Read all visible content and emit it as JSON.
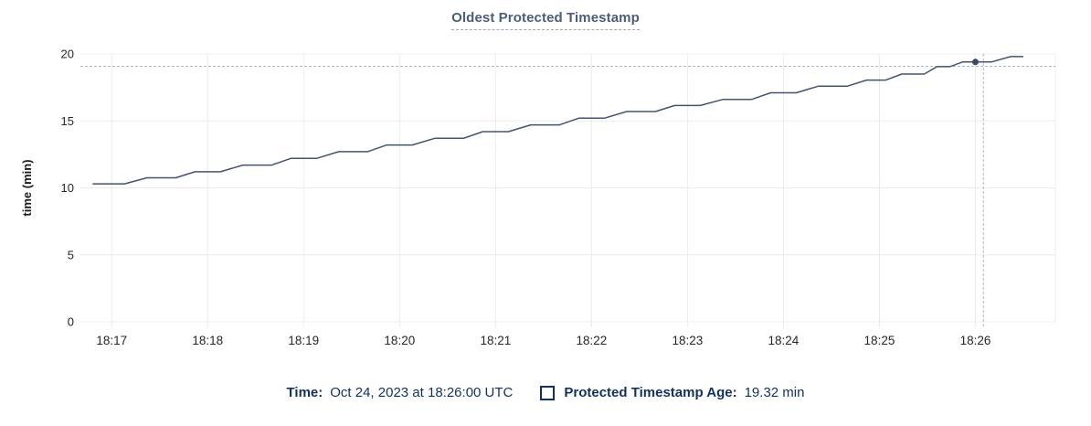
{
  "title": "Oldest Protected Timestamp",
  "tooltip": {
    "time_label": "Time:",
    "time_value": "Oct 24, 2023 at 18:26:00 UTC",
    "series_label": "Protected Timestamp Age:",
    "series_value": "19.32 min"
  },
  "colors": {
    "line": "#44536e",
    "marker": "#3a4a67",
    "grid": "#ececec",
    "crosshair": "#a3b7c6",
    "title": "#4c5d78",
    "axis_text": "#242628",
    "axis_title": "#1a1d21",
    "legend_text": "#13325b"
  },
  "chart_data": {
    "type": "line",
    "title": "Oldest Protected Timestamp",
    "xlabel": "",
    "ylabel": "time (min)",
    "ylim": [
      0,
      20
    ],
    "y_ticks": [
      0,
      5,
      10,
      15,
      20
    ],
    "x_ticks": [
      "18:17",
      "18:18",
      "18:19",
      "18:20",
      "18:21",
      "18:22",
      "18:23",
      "18:24",
      "18:25",
      "18:26"
    ],
    "x_domain": [
      "18:16:45",
      "18:26:50"
    ],
    "grid": true,
    "legend_position": "bottom",
    "series": [
      {
        "name": "Protected Timestamp Age",
        "unit": "min",
        "points": [
          [
            "18:16:48",
            10.3
          ],
          [
            "18:17:08",
            10.3
          ],
          [
            "18:17:22",
            10.75
          ],
          [
            "18:17:40",
            10.75
          ],
          [
            "18:17:52",
            11.2
          ],
          [
            "18:18:08",
            11.2
          ],
          [
            "18:18:22",
            11.7
          ],
          [
            "18:18:40",
            11.7
          ],
          [
            "18:18:52",
            12.2
          ],
          [
            "18:19:08",
            12.2
          ],
          [
            "18:19:22",
            12.7
          ],
          [
            "18:19:40",
            12.7
          ],
          [
            "18:19:52",
            13.2
          ],
          [
            "18:20:08",
            13.2
          ],
          [
            "18:20:22",
            13.7
          ],
          [
            "18:20:40",
            13.7
          ],
          [
            "18:20:52",
            14.2
          ],
          [
            "18:21:08",
            14.2
          ],
          [
            "18:21:22",
            14.7
          ],
          [
            "18:21:40",
            14.7
          ],
          [
            "18:21:52",
            15.2
          ],
          [
            "18:22:08",
            15.2
          ],
          [
            "18:22:22",
            15.7
          ],
          [
            "18:22:40",
            15.7
          ],
          [
            "18:22:52",
            16.15
          ],
          [
            "18:23:08",
            16.15
          ],
          [
            "18:23:22",
            16.6
          ],
          [
            "18:23:40",
            16.6
          ],
          [
            "18:23:52",
            17.1
          ],
          [
            "18:24:08",
            17.1
          ],
          [
            "18:24:22",
            17.6
          ],
          [
            "18:24:40",
            17.6
          ],
          [
            "18:24:52",
            18.05
          ],
          [
            "18:25:04",
            18.05
          ],
          [
            "18:25:14",
            18.5
          ],
          [
            "18:25:28",
            18.5
          ],
          [
            "18:25:36",
            19.05
          ],
          [
            "18:25:44",
            19.05
          ],
          [
            "18:25:52",
            19.4
          ],
          [
            "18:26:10",
            19.4
          ],
          [
            "18:26:22",
            19.8
          ],
          [
            "18:26:30",
            19.8
          ]
        ]
      }
    ],
    "hover": {
      "point_time": "18:26:00",
      "point_value": 19.32,
      "mouse_time": "18:26:05",
      "mouse_value": 19.08
    }
  }
}
